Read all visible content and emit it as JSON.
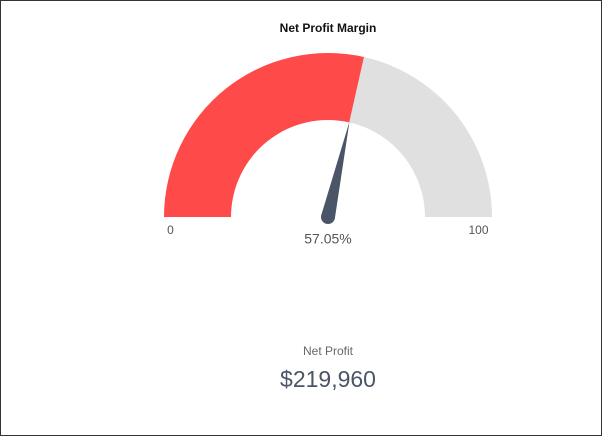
{
  "chart_data": {
    "type": "gauge",
    "title": "Net Profit Margin",
    "values": [
      57.05
    ],
    "value_labels": [
      "57.05%"
    ],
    "ylim": [
      0,
      100
    ],
    "yticks": [
      0,
      100
    ],
    "colors": {
      "fill": "#ff4a4a",
      "rest": "#e0e0e0",
      "needle": "#4a5568"
    }
  },
  "kpi": {
    "label": "Net Profit",
    "value": "$219,960"
  }
}
